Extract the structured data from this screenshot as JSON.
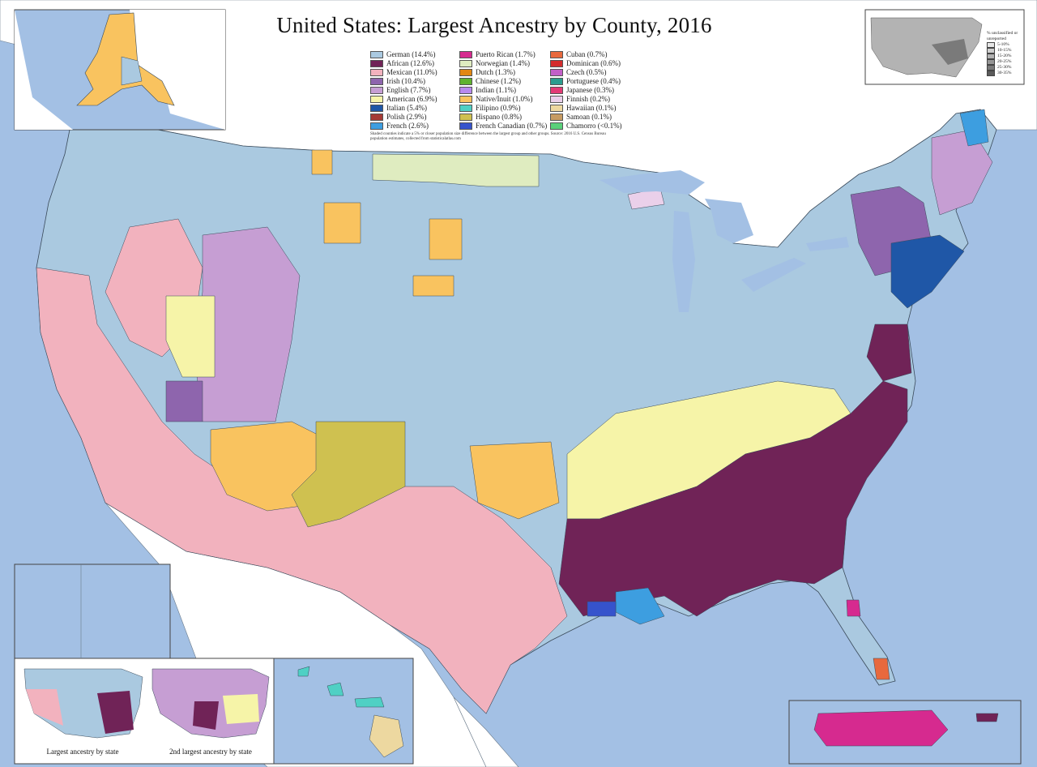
{
  "title": "United States: Largest Ancestry by County, 2016",
  "legend": [
    {
      "label": "German (14.4%)",
      "color": "#aac9e0"
    },
    {
      "label": "African (12.6%)",
      "color": "#702357"
    },
    {
      "label": "Mexican (11.0%)",
      "color": "#f2b2be"
    },
    {
      "label": "Irish (10.4%)",
      "color": "#8e65ad"
    },
    {
      "label": "English (7.7%)",
      "color": "#c69ed3"
    },
    {
      "label": "American (6.9%)",
      "color": "#f6f4a8"
    },
    {
      "label": "Italian (5.4%)",
      "color": "#1f57a7"
    },
    {
      "label": "Polish (2.9%)",
      "color": "#a53a36"
    },
    {
      "label": "French (2.6%)",
      "color": "#3d9ee0"
    },
    {
      "label": "Puerto Rican (1.7%)",
      "color": "#d62a8f"
    },
    {
      "label": "Norwegian (1.4%)",
      "color": "#dfecc0"
    },
    {
      "label": "Dutch (1.3%)",
      "color": "#e28713"
    },
    {
      "label": "Chinese (1.2%)",
      "color": "#5fb22f"
    },
    {
      "label": "Indian (1.1%)",
      "color": "#b889ee"
    },
    {
      "label": "Native/Inuit (1.0%)",
      "color": "#f9c35f"
    },
    {
      "label": "Filipino (0.9%)",
      "color": "#4fd0c4"
    },
    {
      "label": "Hispano (0.8%)",
      "color": "#cfc150"
    },
    {
      "label": "French Canadian (0.7%)",
      "color": "#3653cc"
    },
    {
      "label": "Cuban (0.7%)",
      "color": "#e8693d"
    },
    {
      "label": "Dominican (0.6%)",
      "color": "#d42c2c"
    },
    {
      "label": "Czech (0.5%)",
      "color": "#c25fc7"
    },
    {
      "label": "Portuguese (0.4%)",
      "color": "#2b9c8e"
    },
    {
      "label": "Japanese (0.3%)",
      "color": "#e23a75"
    },
    {
      "label": "Finnish (0.2%)",
      "color": "#ead0ea"
    },
    {
      "label": "Hawaiian (0.1%)",
      "color": "#edd8a0"
    },
    {
      "label": "Samoan (0.1%)",
      "color": "#c79b62"
    },
    {
      "label": "Chamorro (<0.1%)",
      "color": "#5ad07a"
    }
  ],
  "legend_note": "Shaded counties indicate a 5% or closer population size difference between the largest group and other groups. Source: 2016 U.S. Census Bureau population estimates, collected from statisticalatlas.com",
  "inset_labels": {
    "state_largest": "Largest ancestry by state",
    "state_second": "2nd largest ancestry by state"
  },
  "mini_legend": {
    "heading": "% unclassified or unreported",
    "classes": [
      {
        "label": "5-10%",
        "color": "#e6e6e6"
      },
      {
        "label": "10-15%",
        "color": "#cfcfcf"
      },
      {
        "label": "15-20%",
        "color": "#b3b3b3"
      },
      {
        "label": "20-25%",
        "color": "#969696"
      },
      {
        "label": "25-30%",
        "color": "#7a7a7a"
      },
      {
        "label": "30-35%",
        "color": "#5b5b5b"
      }
    ]
  },
  "colors": {
    "water": "#a3c0e4",
    "border": "#3a4a5a",
    "foreign_land": "#ffffff"
  }
}
